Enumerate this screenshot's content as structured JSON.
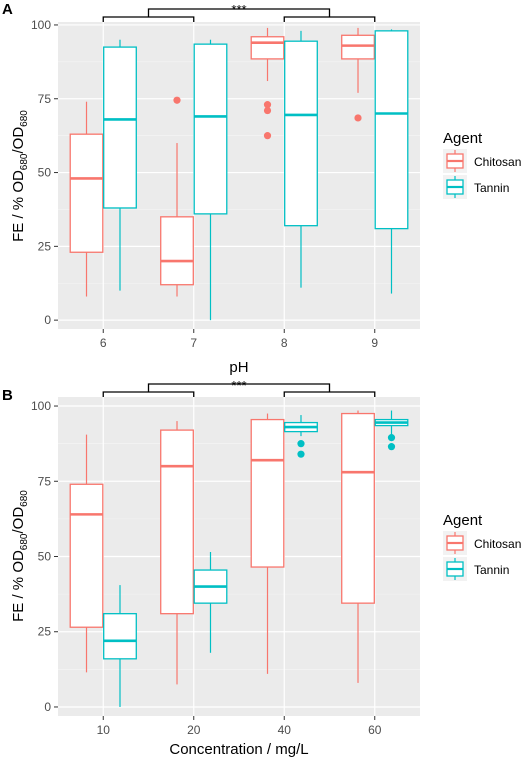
{
  "chart_data": [
    {
      "type": "boxplot",
      "panel_label": "A",
      "xlabel": "pH",
      "ylabel_main": "FE / % OD",
      "ylabel_sub1": "680",
      "ylabel_mid": "/OD",
      "ylabel_sub2": "680",
      "categories": [
        "6",
        "7",
        "8",
        "9"
      ],
      "ylim": [
        -3,
        101
      ],
      "yticks": [
        0,
        25,
        50,
        75,
        100
      ],
      "grid": true,
      "legend_position": "right",
      "significance": "***",
      "brackets": [
        {
          "from": "6",
          "to": "7"
        },
        {
          "from": "8",
          "to": "9"
        }
      ],
      "series": [
        {
          "name": "Chitosan",
          "color": "#F8766D",
          "boxes": [
            {
              "category": "6",
              "min": 8,
              "q1": 23,
              "median": 48,
              "q3": 63,
              "max": 74,
              "outliers": []
            },
            {
              "category": "7",
              "min": 8,
              "q1": 12,
              "median": 20,
              "q3": 35,
              "max": 60,
              "outliers": [
                74.5
              ]
            },
            {
              "category": "8",
              "min": 81,
              "q1": 88.5,
              "median": 94,
              "q3": 96,
              "max": 99,
              "outliers": [
                73,
                71,
                62.5
              ]
            },
            {
              "category": "9",
              "min": 77,
              "q1": 88.5,
              "median": 93,
              "q3": 96.5,
              "max": 99,
              "outliers": [
                68.5
              ]
            }
          ]
        },
        {
          "name": "Tannin",
          "color": "#00BFC4",
          "boxes": [
            {
              "category": "6",
              "min": 10,
              "q1": 38,
              "median": 68,
              "q3": 92.5,
              "max": 95,
              "outliers": []
            },
            {
              "category": "7",
              "min": 0,
              "q1": 36,
              "median": 69,
              "q3": 93.5,
              "max": 95,
              "outliers": []
            },
            {
              "category": "8",
              "min": 11,
              "q1": 32,
              "median": 69.5,
              "q3": 94.5,
              "max": 98,
              "outliers": []
            },
            {
              "category": "9",
              "min": 9,
              "q1": 31,
              "median": 70,
              "q3": 98,
              "max": 98.5,
              "outliers": []
            }
          ]
        }
      ]
    },
    {
      "type": "boxplot",
      "panel_label": "B",
      "xlabel": "Concentration / mg/L",
      "ylabel_main": "FE / % OD",
      "ylabel_sub1": "680",
      "ylabel_mid": "/OD",
      "ylabel_sub2": "680",
      "categories": [
        "10",
        "20",
        "40",
        "60"
      ],
      "ylim": [
        -3,
        103
      ],
      "yticks": [
        0,
        25,
        50,
        75,
        100
      ],
      "grid": true,
      "legend_position": "right",
      "significance": "***",
      "brackets": [
        {
          "from": "10",
          "to": "20"
        },
        {
          "from": "40",
          "to": "60"
        }
      ],
      "series": [
        {
          "name": "Chitosan",
          "color": "#F8766D",
          "boxes": [
            {
              "category": "10",
              "min": 11.5,
              "q1": 26.5,
              "median": 64,
              "q3": 74,
              "max": 90.5,
              "outliers": []
            },
            {
              "category": "20",
              "min": 7.5,
              "q1": 31,
              "median": 80,
              "q3": 92,
              "max": 95,
              "outliers": []
            },
            {
              "category": "40",
              "min": 11,
              "q1": 46.5,
              "median": 82,
              "q3": 95.5,
              "max": 97.5,
              "outliers": []
            },
            {
              "category": "60",
              "min": 8,
              "q1": 34.5,
              "median": 78,
              "q3": 97.5,
              "max": 98.5,
              "outliers": []
            }
          ]
        },
        {
          "name": "Tannin",
          "color": "#00BFC4",
          "boxes": [
            {
              "category": "10",
              "min": 0,
              "q1": 16,
              "median": 22,
              "q3": 31,
              "max": 40.5,
              "outliers": []
            },
            {
              "category": "20",
              "min": 18,
              "q1": 34.5,
              "median": 40,
              "q3": 45.5,
              "max": 51.5,
              "outliers": []
            },
            {
              "category": "40",
              "min": 90,
              "q1": 91.5,
              "median": 93,
              "q3": 94.5,
              "max": 97,
              "outliers": [
                87.5,
                84
              ]
            },
            {
              "category": "60",
              "min": 90,
              "q1": 93.5,
              "median": 94.5,
              "q3": 95.5,
              "max": 98.5,
              "outliers": [
                89.5,
                86.5
              ]
            }
          ]
        }
      ]
    }
  ],
  "legend": {
    "title": "Agent",
    "items": [
      {
        "label": "Chitosan",
        "color": "#F8766D"
      },
      {
        "label": "Tannin",
        "color": "#00BFC4"
      }
    ]
  }
}
